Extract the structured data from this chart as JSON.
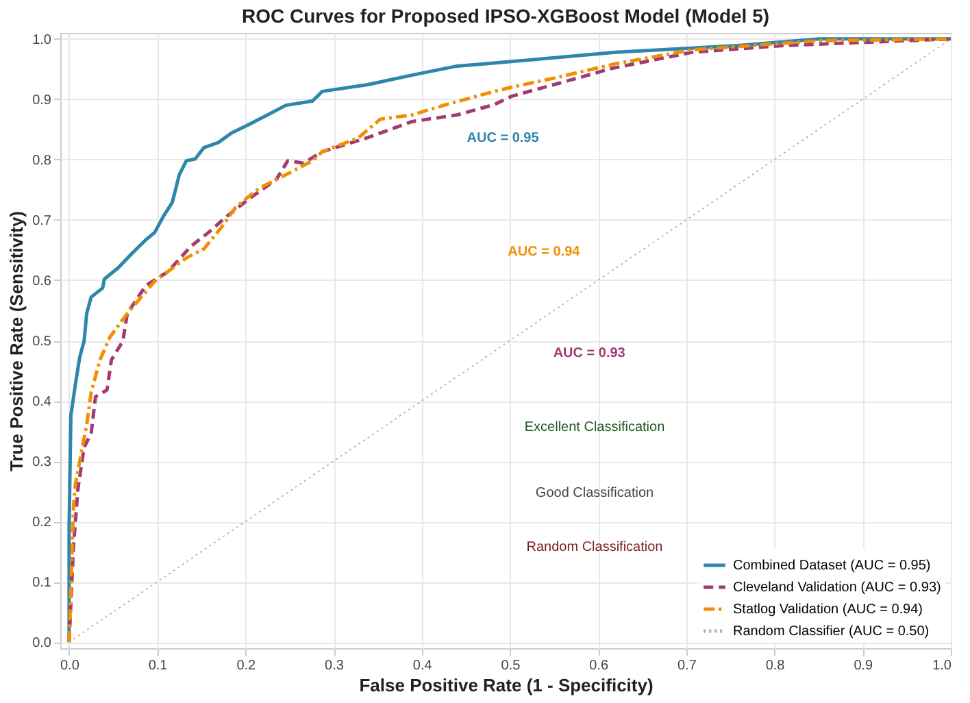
{
  "chart_data": {
    "type": "line",
    "title": "ROC Curves for Proposed IPSO-XGBoost Model (Model 5)",
    "xlabel": "False Positive Rate (1 - Specificity)",
    "ylabel": "True Positive Rate (Sensitivity)",
    "xlim": [
      -0.01,
      1.0
    ],
    "ylim": [
      -0.01,
      1.01
    ],
    "xticks": [
      {
        "value": 0,
        "label": "0.0"
      },
      0.1,
      0.2,
      0.3,
      0.4,
      0.5,
      0.6,
      0.7,
      0.8,
      0.9,
      {
        "value": 1,
        "label": "1.0"
      }
    ],
    "yticks": [
      {
        "value": 0,
        "label": "0.0"
      },
      0.1,
      0.2,
      0.3,
      0.4,
      0.5,
      0.6,
      0.7,
      0.8,
      0.9,
      {
        "value": 1,
        "label": "1.0"
      }
    ],
    "grid": true,
    "legend": "bottom right",
    "marker": "none",
    "series": [
      {
        "name": "Combined Dataset (AUC = 0.95)",
        "color": "#2e86ab",
        "line_style": "solid",
        "x": [
          0,
          0,
          0.002,
          0.007,
          0.012,
          0.017,
          0.02,
          0.025,
          0.038,
          0.04,
          0.056,
          0.071,
          0.087,
          0.097,
          0.107,
          0.117,
          0.125,
          0.133,
          0.143,
          0.153,
          0.169,
          0.184,
          0.205,
          0.225,
          0.246,
          0.276,
          0.287,
          0.338,
          0.389,
          0.44,
          0.482,
          0.62,
          0.758,
          0.851,
          1.0
        ],
        "values": [
          0,
          0.19,
          0.376,
          0.426,
          0.472,
          0.499,
          0.545,
          0.572,
          0.587,
          0.602,
          0.621,
          0.644,
          0.667,
          0.679,
          0.706,
          0.729,
          0.775,
          0.798,
          0.801,
          0.82,
          0.828,
          0.844,
          0.859,
          0.874,
          0.89,
          0.897,
          0.913,
          0.924,
          0.94,
          0.955,
          0.96,
          0.978,
          0.989,
          1.0,
          1.0
        ]
      },
      {
        "name": "Cleveland Validation (AUC = 0.93)",
        "color": "#a23b72",
        "line_style": "dashed",
        "x": [
          0,
          0.005,
          0.01,
          0.017,
          0.025,
          0.03,
          0.043,
          0.048,
          0.061,
          0.066,
          0.087,
          0.112,
          0.138,
          0.158,
          0.179,
          0.205,
          0.235,
          0.248,
          0.266,
          0.287,
          0.338,
          0.389,
          0.44,
          0.482,
          0.502,
          0.579,
          0.615,
          0.707,
          0.81,
          1.0
        ],
        "values": [
          0,
          0.16,
          0.254,
          0.323,
          0.346,
          0.407,
          0.418,
          0.468,
          0.499,
          0.545,
          0.591,
          0.614,
          0.656,
          0.679,
          0.706,
          0.736,
          0.767,
          0.798,
          0.794,
          0.813,
          0.836,
          0.863,
          0.874,
          0.891,
          0.905,
          0.936,
          0.951,
          0.978,
          0.989,
          1.0
        ]
      },
      {
        "name": "Statlog Validation (AUC = 0.94)",
        "color": "#f18f01",
        "line_style": "dashdot",
        "x": [
          0,
          0.005,
          0.007,
          0.015,
          0.02,
          0.025,
          0.035,
          0.046,
          0.066,
          0.097,
          0.133,
          0.153,
          0.174,
          0.189,
          0.215,
          0.246,
          0.276,
          0.287,
          0.328,
          0.353,
          0.389,
          0.425,
          0.482,
          0.502,
          0.553,
          0.62,
          0.707,
          0.851,
          1.0
        ],
        "values": [
          0,
          0.223,
          0.261,
          0.323,
          0.361,
          0.414,
          0.468,
          0.505,
          0.545,
          0.598,
          0.637,
          0.652,
          0.69,
          0.721,
          0.752,
          0.775,
          0.798,
          0.813,
          0.836,
          0.867,
          0.874,
          0.89,
          0.913,
          0.92,
          0.936,
          0.959,
          0.982,
          0.997,
          1.0
        ]
      },
      {
        "name": "Random Classifier (AUC = 0.50)",
        "color": "#aaaaaa",
        "line_style": "dotted",
        "x": [
          0,
          1
        ],
        "values": [
          0,
          1
        ]
      }
    ],
    "annotations": [
      "AUC = 0.95",
      "AUC = 0.94",
      "AUC = 0.93",
      "Excellent Classification",
      "Good Classification",
      "Random Classification"
    ]
  }
}
